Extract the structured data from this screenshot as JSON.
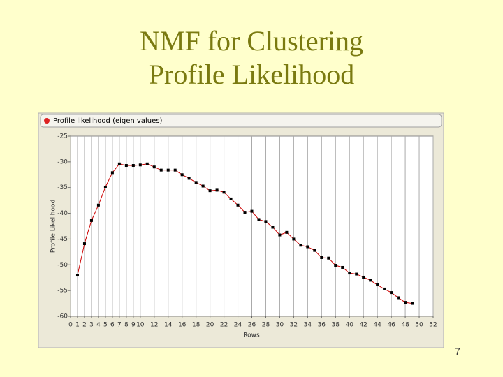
{
  "slide": {
    "title_lines": [
      "NMF for Clustering",
      "Profile Likelihood"
    ],
    "page_number": "7"
  },
  "chart_data": {
    "type": "line",
    "title": "Profile likelihood (eigen values)",
    "x_label": "Rows",
    "y_label": "Profile Likelihood",
    "x": [
      1,
      2,
      3,
      4,
      5,
      6,
      7,
      8,
      9,
      10,
      11,
      12,
      13,
      14,
      15,
      16,
      17,
      18,
      19,
      20,
      21,
      22,
      23,
      24,
      25,
      26,
      27,
      28,
      29,
      30,
      31,
      32,
      33,
      34,
      35,
      36,
      37,
      38,
      39,
      40,
      41,
      42,
      43,
      44,
      45,
      46,
      47,
      48,
      49
    ],
    "series": [
      {
        "color": "#cc0000",
        "marker_color": "#000000",
        "values": [
          -52.0,
          -45.9,
          -41.4,
          -38.4,
          -34.9,
          -32.1,
          -30.4,
          -30.7,
          -30.7,
          -30.6,
          -30.4,
          -31.0,
          -31.6,
          -31.6,
          -31.6,
          -32.5,
          -33.2,
          -34.0,
          -34.7,
          -35.6,
          -35.5,
          -35.9,
          -37.2,
          -38.4,
          -39.8,
          -39.6,
          -41.2,
          -41.6,
          -42.7,
          -44.2,
          -43.7,
          -45.0,
          -46.2,
          -46.5,
          -47.2,
          -48.6,
          -48.7,
          -50.1,
          -50.5,
          -51.6,
          -51.8,
          -52.4,
          -53.0,
          -53.9,
          -54.7,
          -55.4,
          -56.4,
          -57.3,
          -57.5
        ]
      }
    ],
    "xlim": [
      0,
      52
    ],
    "xticks": [
      0,
      1,
      2,
      3,
      4,
      5,
      6,
      7,
      8,
      9,
      10,
      12,
      14,
      16,
      18,
      20,
      22,
      24,
      26,
      28,
      30,
      32,
      34,
      36,
      38,
      40,
      42,
      44,
      46,
      48,
      50,
      52
    ],
    "ylim": [
      -60,
      -25
    ],
    "yticks": [
      -25,
      -30,
      -35,
      -40,
      -45,
      -50,
      -55,
      -60
    ],
    "grid": "x"
  }
}
